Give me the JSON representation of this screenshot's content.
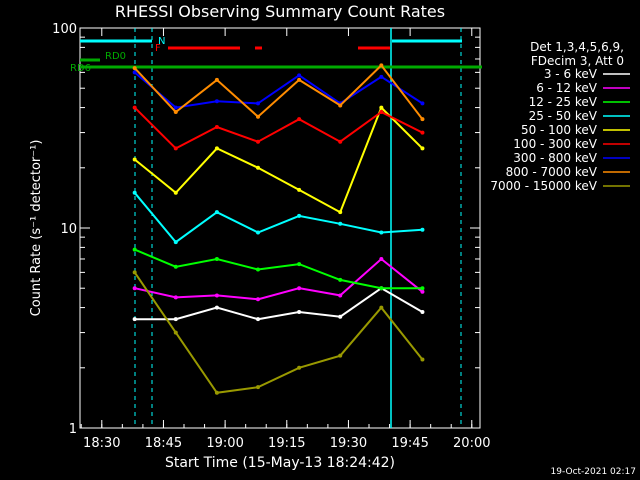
{
  "chart_data": {
    "type": "line",
    "title": "RHESSI Observing Summary Count Rates",
    "xlabel": "Start Time (15-May-13 18:24:42)",
    "ylabel": "Count Rate (s⁻¹ detector⁻¹)",
    "yscale": "log",
    "ylim": [
      1,
      100
    ],
    "xlim": [
      "18:24:42",
      "20:02"
    ],
    "x_ticks": [
      "18:30",
      "18:45",
      "19:00",
      "19:15",
      "19:30",
      "19:45",
      "20:00"
    ],
    "y_ticks": [
      "1",
      "10",
      "100"
    ],
    "legend_header": [
      "Det 1,3,4,5,6,9,",
      "FDecim 3, Att 0"
    ],
    "legend_position": "right",
    "footer_date": "19-Oct-2021 02:17",
    "flags": [
      {
        "label": "N",
        "color": "#00ffff"
      },
      {
        "label": "F",
        "color": "#ff0000"
      },
      {
        "label": "RD0",
        "color": "#00aa00"
      },
      {
        "label": "RD6",
        "color": "#00aa00"
      }
    ],
    "x": [
      "18:38",
      "18:48",
      "18:58",
      "19:08",
      "19:18",
      "19:28",
      "19:38",
      "19:48"
    ],
    "series": [
      {
        "name": "3 - 6 keV",
        "color": "#ffffff",
        "values": [
          3.5,
          3.5,
          4.0,
          3.5,
          3.8,
          3.6,
          5.0,
          3.8
        ]
      },
      {
        "name": "6 - 12 keV",
        "color": "#ff00ff",
        "values": [
          5.0,
          4.5,
          4.6,
          4.4,
          5.0,
          4.6,
          7.0,
          4.8
        ]
      },
      {
        "name": "12 - 25 keV",
        "color": "#00ff00",
        "values": [
          7.8,
          6.4,
          7.0,
          6.2,
          6.6,
          5.5,
          5.0,
          5.0
        ]
      },
      {
        "name": "25 - 50 keV",
        "color": "#00ffff",
        "values": [
          15.0,
          8.5,
          12.0,
          9.5,
          11.5,
          10.5,
          9.5,
          9.8
        ]
      },
      {
        "name": "50 - 100 keV",
        "color": "#ffff00",
        "values": [
          22.0,
          15.0,
          25.0,
          20.0,
          15.5,
          12.0,
          40.0,
          25.0
        ]
      },
      {
        "name": "100 - 300 keV",
        "color": "#ff0000",
        "values": [
          40.0,
          25.0,
          32.0,
          27.0,
          35.0,
          27.0,
          38.0,
          30.0
        ]
      },
      {
        "name": "300 - 800 keV",
        "color": "#0000ff",
        "values": [
          60.0,
          40.0,
          43.0,
          42.0,
          58.0,
          42.0,
          57.0,
          42.0
        ]
      },
      {
        "name": "800 - 7000 keV",
        "color": "#ff8c00",
        "values": [
          63.0,
          38.0,
          55.0,
          36.0,
          55.0,
          41.0,
          65.0,
          35.0
        ]
      },
      {
        "name": "7000 - 15000 keV",
        "color": "#999900",
        "values": [
          6.0,
          3.0,
          1.5,
          1.6,
          2.0,
          2.3,
          4.0,
          2.2
        ]
      }
    ]
  }
}
